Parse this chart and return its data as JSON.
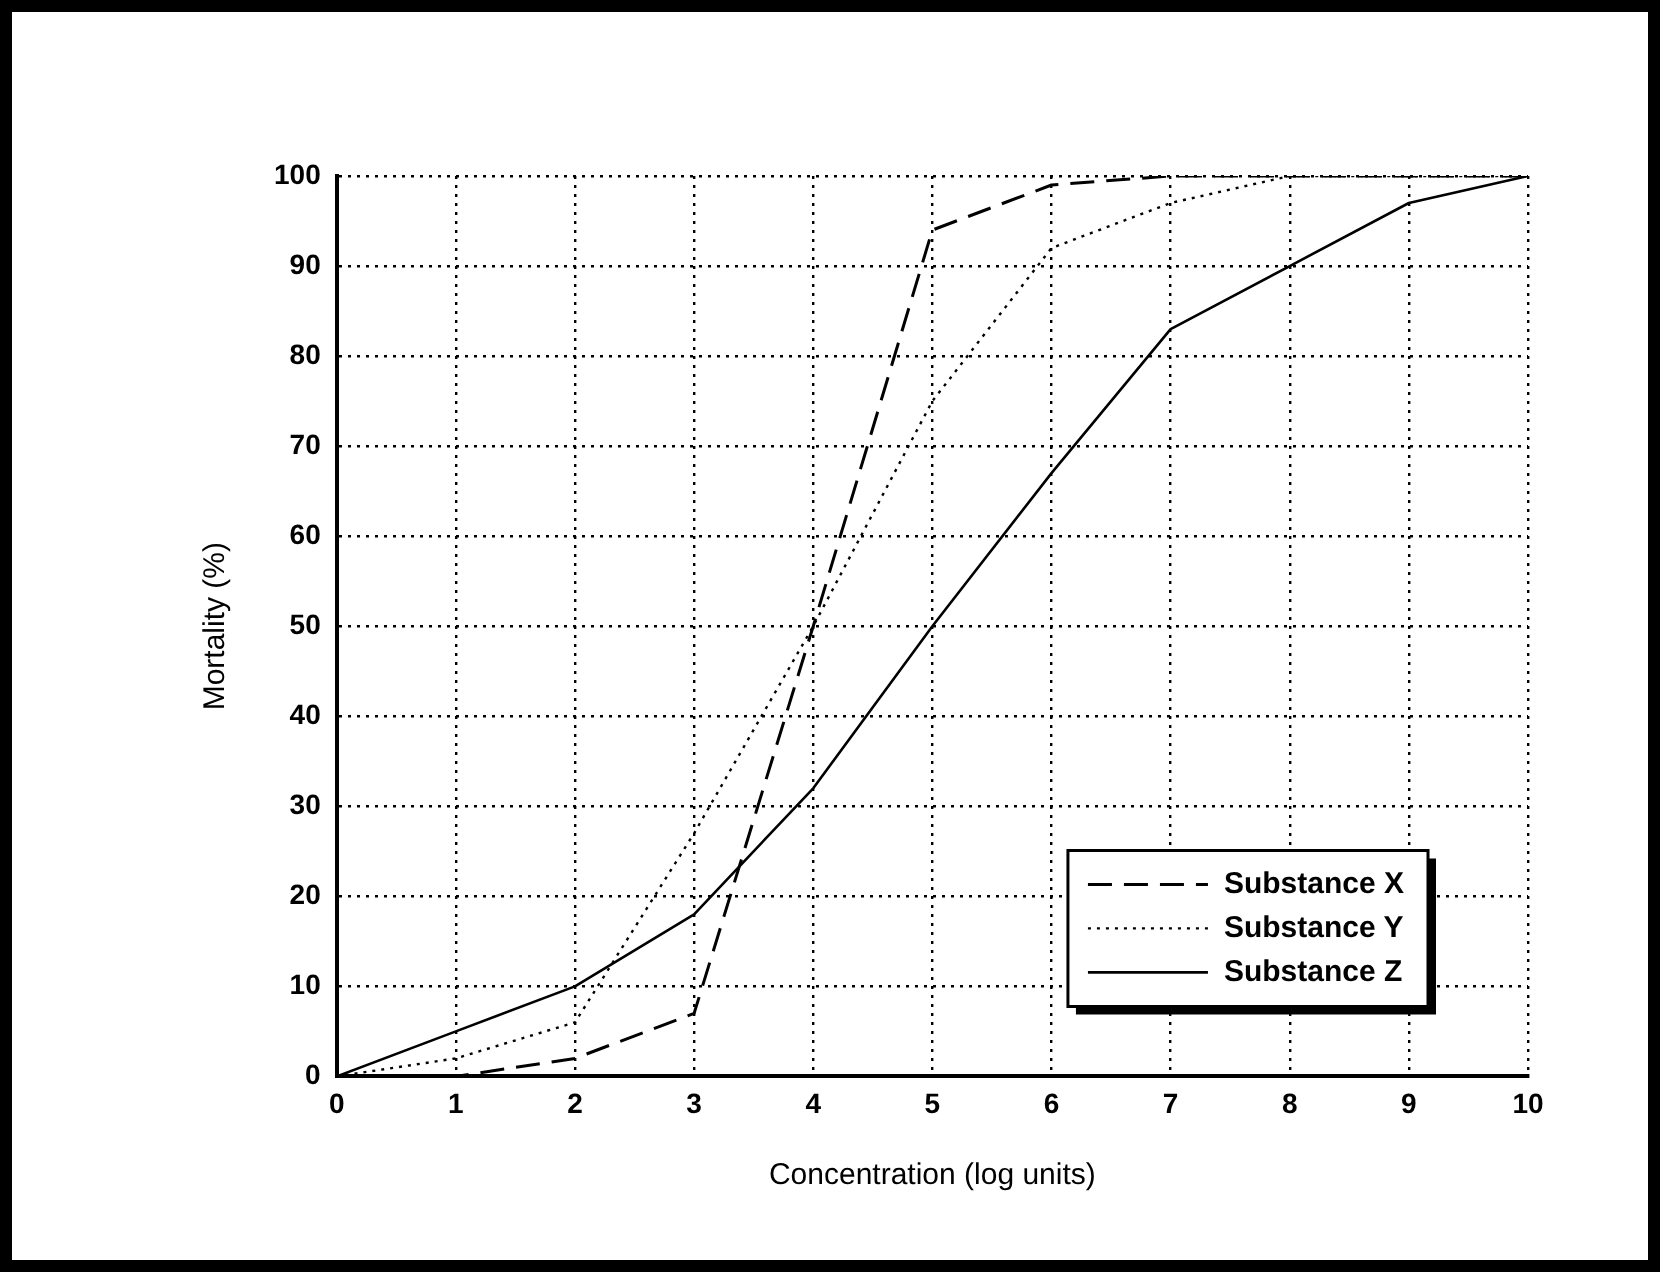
{
  "chart_data": {
    "type": "line",
    "xlabel": "Concentration (log units)",
    "ylabel": "Mortality (%)",
    "x": [
      0,
      1,
      2,
      3,
      4,
      5,
      6,
      7,
      8,
      9,
      10
    ],
    "series": [
      {
        "name": "Substance X",
        "color": "#000000",
        "line_style": "dashed",
        "values": [
          0,
          0,
          2,
          7,
          50,
          94,
          99,
          100,
          100,
          100,
          100
        ]
      },
      {
        "name": "Substance Y",
        "color": "#000000",
        "line_style": "dotted",
        "values": [
          0,
          2,
          6,
          27,
          50,
          75,
          92,
          97,
          100,
          100,
          100
        ]
      },
      {
        "name": "Substance Z",
        "color": "#000000",
        "line_style": "solid",
        "values": [
          0,
          5,
          10,
          18,
          32,
          50,
          67,
          83,
          90,
          97,
          100
        ]
      }
    ],
    "xlim": [
      0,
      10
    ],
    "xticks": [
      0,
      1,
      2,
      3,
      4,
      5,
      6,
      7,
      8,
      9,
      10
    ],
    "ylim": [
      0,
      100
    ],
    "yticks": [
      0,
      10,
      20,
      30,
      40,
      50,
      60,
      70,
      80,
      90,
      100
    ],
    "grid": true,
    "legend": "bottom right",
    "marker": "none"
  }
}
